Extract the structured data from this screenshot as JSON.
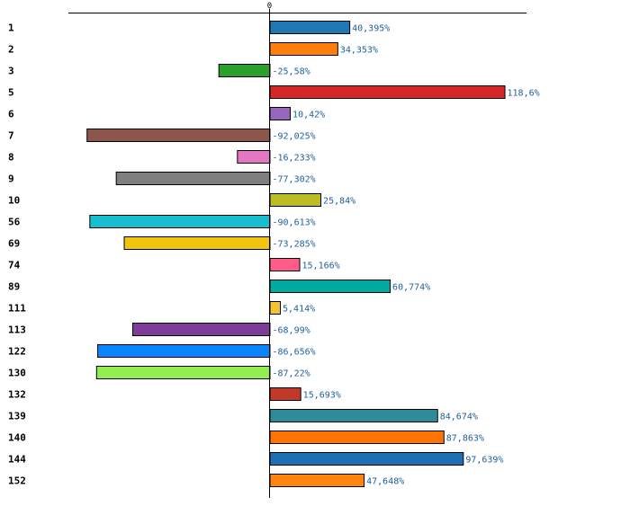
{
  "chart_data": {
    "type": "bar",
    "orientation": "horizontal",
    "title": "",
    "xlabel": "",
    "ylabel": "",
    "zero_tick_label": "0",
    "xlim": [
      -101.2,
      129.7
    ],
    "value_suffix": "%",
    "decimal_separator": ",",
    "categories": [
      "1",
      "2",
      "3",
      "5",
      "6",
      "7",
      "8",
      "9",
      "10",
      "56",
      "69",
      "74",
      "89",
      "111",
      "113",
      "122",
      "130",
      "132",
      "139",
      "140",
      "144",
      "152"
    ],
    "values": [
      40.395,
      34.353,
      -25.58,
      118.6,
      10.42,
      -92.025,
      -16.233,
      -77.302,
      25.84,
      -90.613,
      -73.285,
      15.166,
      60.774,
      5.414,
      -68.99,
      -86.656,
      -87.22,
      15.693,
      84.674,
      87.863,
      97.639,
      47.648
    ],
    "value_labels": [
      "40,395%",
      "34,353%",
      "-25,58%",
      "118,6%",
      "10,42%",
      "-92,025%",
      "-16,233%",
      "-77,302%",
      "25,84%",
      "-90,613%",
      "-73,285%",
      "15,166%",
      "60,774%",
      "5,414%",
      "-68,99%",
      "-86,656%",
      "-87,22%",
      "15,693%",
      "84,674%",
      "87,863%",
      "97,639%",
      "47,648%"
    ],
    "colors": [
      "#1f77b4",
      "#ff7f0e",
      "#2ca02c",
      "#d62728",
      "#9467bd",
      "#8c564b",
      "#e377c2",
      "#7f7f7f",
      "#bcbd22",
      "#17becf",
      "#f1c40f",
      "#ff5c8a",
      "#00aaa0",
      "#f4c430",
      "#7d3c98",
      "#0a84ff",
      "#90ee50",
      "#c0392b",
      "#2e8b9a",
      "#ff7300",
      "#1f6fb4",
      "#ff8510"
    ]
  }
}
